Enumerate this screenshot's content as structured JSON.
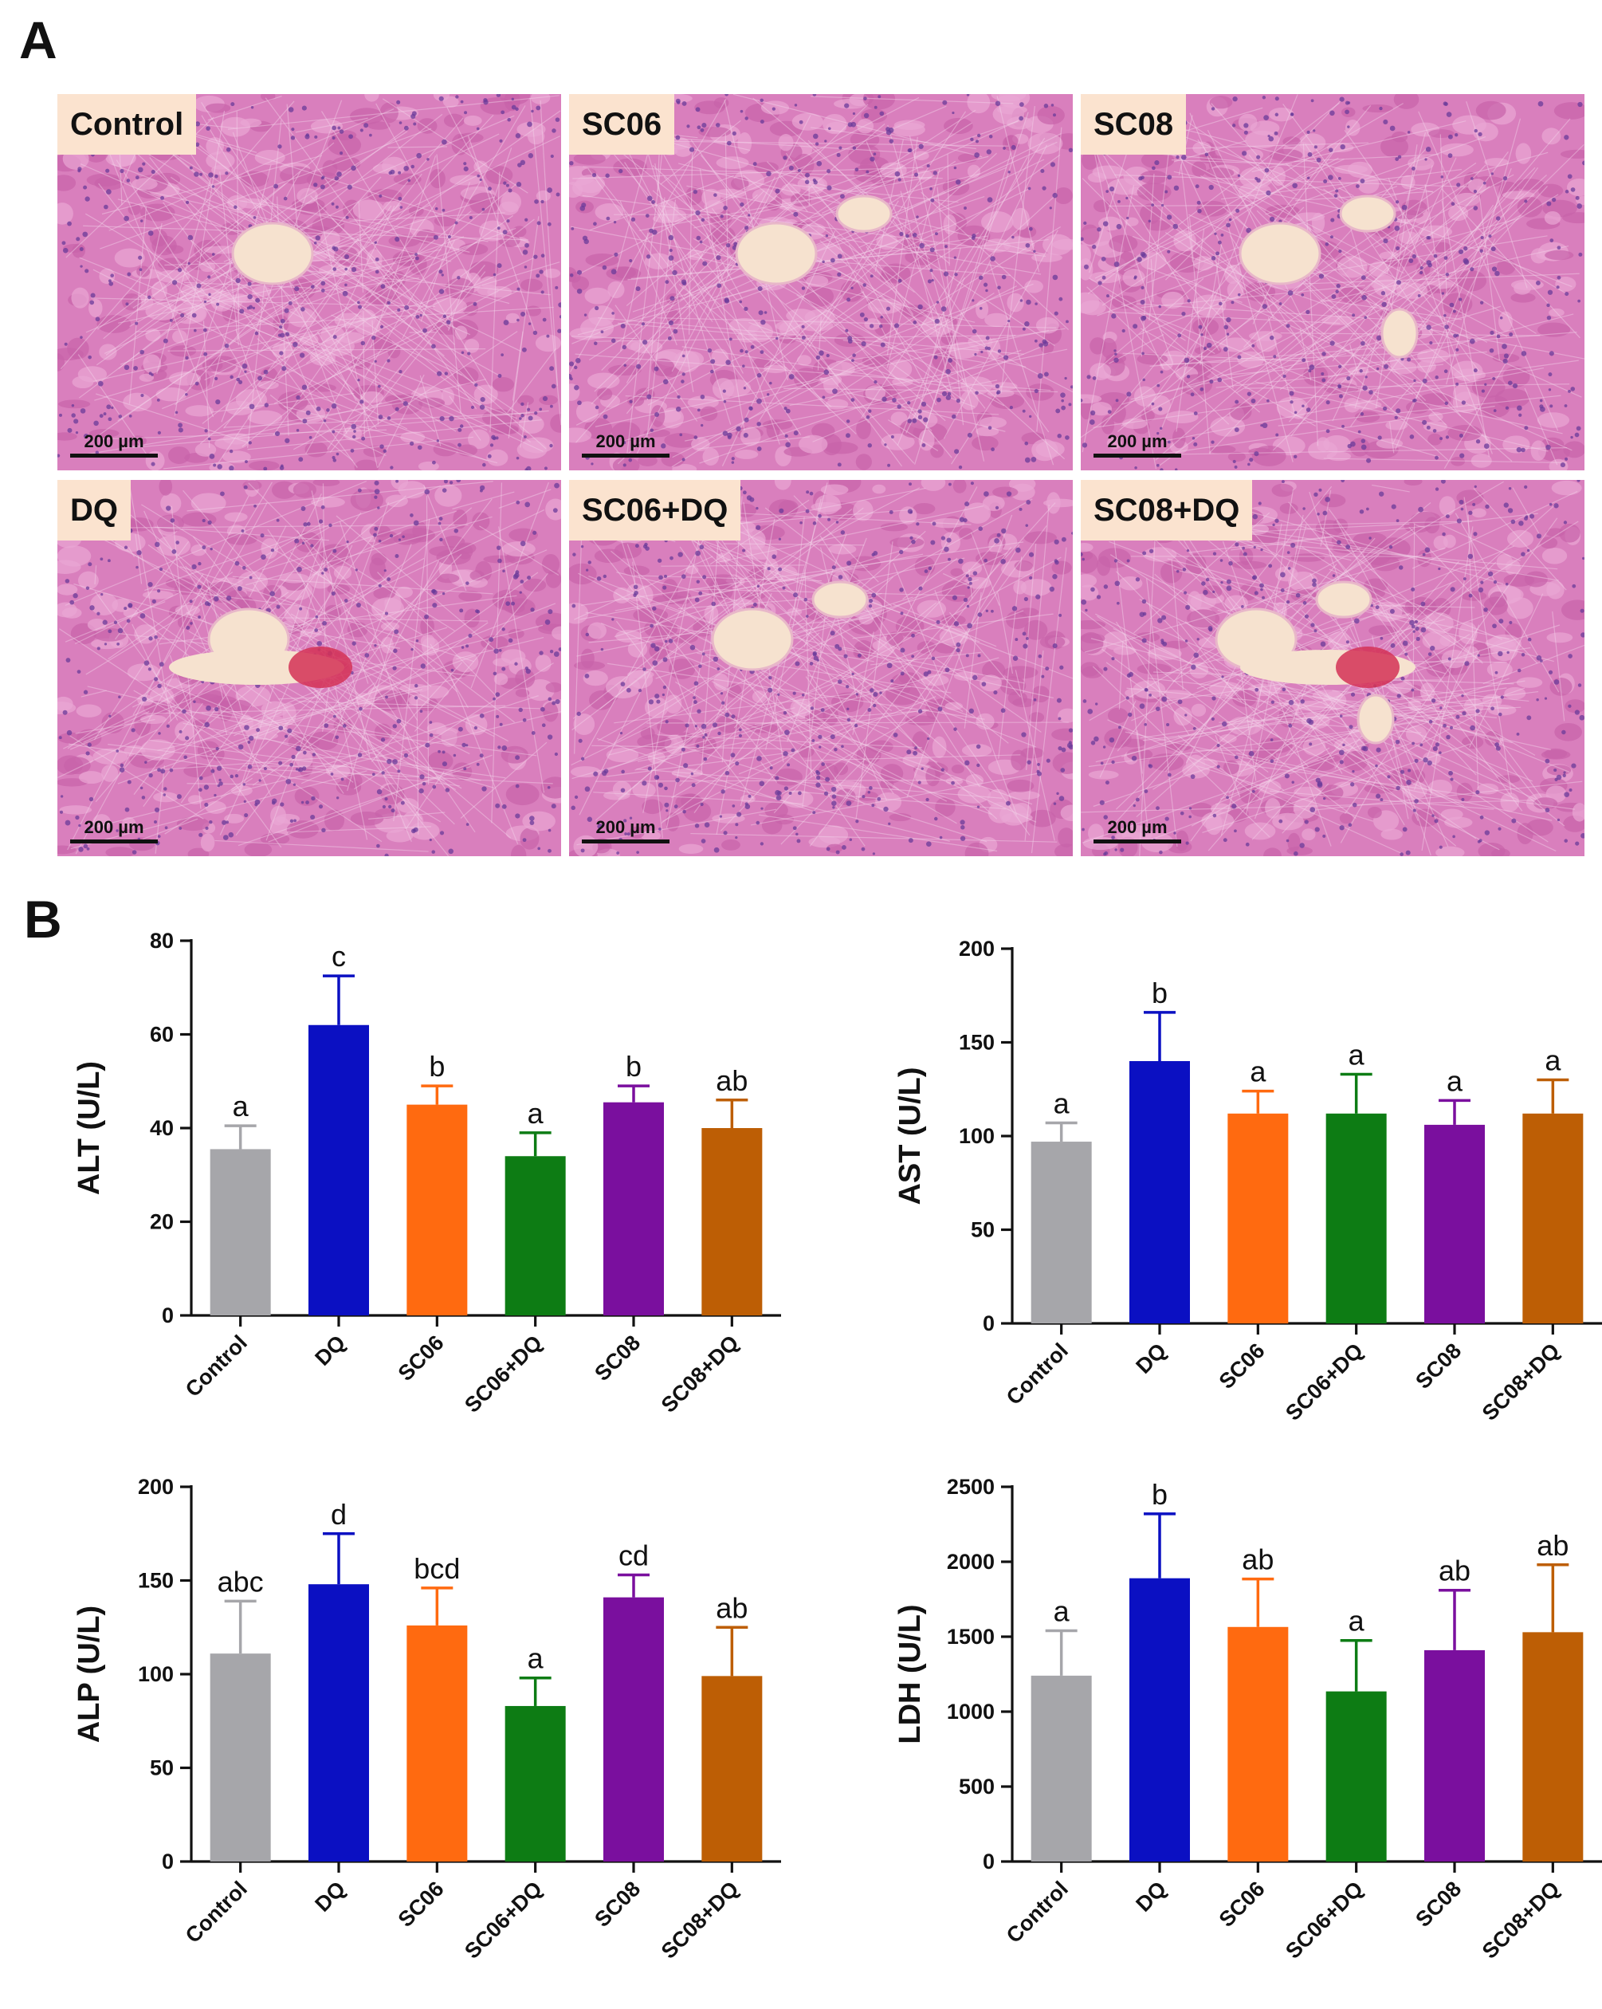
{
  "panel_letters": {
    "a": "A",
    "b": "B"
  },
  "micrographs": {
    "scale_label": "200 µm",
    "panels": [
      {
        "label": "Control"
      },
      {
        "label": "SC06"
      },
      {
        "label": "SC08"
      },
      {
        "label": "DQ"
      },
      {
        "label": "SC06+DQ"
      },
      {
        "label": "SC08+DQ"
      }
    ]
  },
  "colors": [
    "#a6a6aa",
    "#0b10c2",
    "#ff6a10",
    "#0d7c14",
    "#7a0f9e",
    "#bd5e05"
  ],
  "chart_data": [
    {
      "type": "bar",
      "categories": [
        "Control",
        "DQ",
        "SC06",
        "SC06+DQ",
        "SC08",
        "SC08+DQ"
      ],
      "values": [
        35.5,
        62,
        45,
        34,
        45.5,
        40
      ],
      "errors": [
        5,
        10.5,
        4,
        5,
        3.5,
        6
      ],
      "letters": [
        "a",
        "c",
        "b",
        "a",
        "b",
        "ab"
      ],
      "ylabel": "ALT (U/L)",
      "ylim": [
        0,
        80
      ],
      "yticks": [
        0,
        20,
        40,
        60,
        80
      ]
    },
    {
      "type": "bar",
      "categories": [
        "Control",
        "DQ",
        "SC06",
        "SC06+DQ",
        "SC08",
        "SC08+DQ"
      ],
      "values": [
        97,
        140,
        112,
        112,
        106,
        112
      ],
      "errors": [
        10,
        26,
        12,
        21,
        13,
        18
      ],
      "letters": [
        "a",
        "b",
        "a",
        "a",
        "a",
        "a"
      ],
      "ylabel": "AST (U/L)",
      "ylim": [
        0,
        200
      ],
      "yticks": [
        0,
        50,
        100,
        150,
        200
      ]
    },
    {
      "type": "bar",
      "categories": [
        "Control",
        "DQ",
        "SC06",
        "SC06+DQ",
        "SC08",
        "SC08+DQ"
      ],
      "values": [
        111,
        148,
        126,
        83,
        141,
        99
      ],
      "errors": [
        28,
        27,
        20,
        15,
        12,
        26
      ],
      "letters": [
        "abc",
        "d",
        "bcd",
        "a",
        "cd",
        "ab"
      ],
      "ylabel": "ALP (U/L)",
      "ylim": [
        0,
        200
      ],
      "yticks": [
        0,
        50,
        100,
        150,
        200
      ]
    },
    {
      "type": "bar",
      "categories": [
        "Control",
        "DQ",
        "SC06",
        "SC06+DQ",
        "SC08",
        "SC08+DQ"
      ],
      "values": [
        1240,
        1890,
        1565,
        1135,
        1410,
        1530
      ],
      "errors": [
        300,
        430,
        320,
        340,
        400,
        450
      ],
      "letters": [
        "a",
        "b",
        "ab",
        "a",
        "ab",
        "ab"
      ],
      "ylabel": "LDH (U/L)",
      "ylim": [
        0,
        2500
      ],
      "yticks": [
        0,
        500,
        1000,
        1500,
        2000,
        2500
      ]
    }
  ]
}
